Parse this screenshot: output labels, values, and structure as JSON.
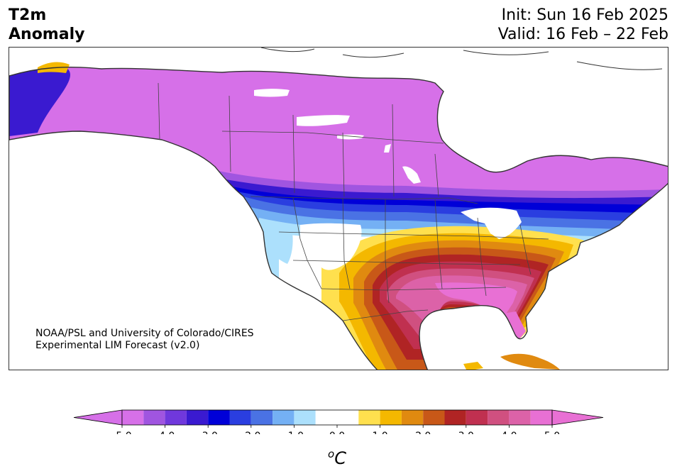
{
  "header": {
    "title_line1": "T2m",
    "title_line2": "Anomaly",
    "init": "Init: Sun 16 Feb 2025",
    "valid": "Valid: 16 Feb – 22 Feb"
  },
  "credit": {
    "line1": "NOAA/PSL and University of Colorado/CIRES",
    "line2": "Experimental LIM Forecast (v2.0)"
  },
  "colorbar": {
    "unit_base": "C",
    "unit_sup": "o",
    "tick_labels": [
      "-5.0",
      "-4.0",
      "-3.0",
      "-2.0",
      "-1.0",
      "0.0",
      "1.0",
      "2.0",
      "3.0",
      "4.0",
      "5.0"
    ],
    "ticks": [
      -5,
      -4,
      -3,
      -2,
      -1,
      0,
      1,
      2,
      3,
      4,
      5
    ],
    "range": [
      -5,
      5
    ],
    "bins": [
      {
        "from": -5.0,
        "to": -4.5,
        "color": "#d670e8"
      },
      {
        "from": -4.5,
        "to": -4.0,
        "color": "#a055e0"
      },
      {
        "from": -4.0,
        "to": -3.5,
        "color": "#7038dc"
      },
      {
        "from": -3.5,
        "to": -3.0,
        "color": "#3a1ad0"
      },
      {
        "from": -3.0,
        "to": -2.5,
        "color": "#0000d8"
      },
      {
        "from": -2.5,
        "to": -2.0,
        "color": "#2a3ee0"
      },
      {
        "from": -2.0,
        "to": -1.5,
        "color": "#4a72e4"
      },
      {
        "from": -1.5,
        "to": -1.0,
        "color": "#74b0f4"
      },
      {
        "from": -1.0,
        "to": -0.5,
        "color": "#ace0fc"
      },
      {
        "from": -0.5,
        "to": 0.5,
        "color": "#ffffff"
      },
      {
        "from": 0.5,
        "to": 1.0,
        "color": "#ffe04e"
      },
      {
        "from": 1.0,
        "to": 1.5,
        "color": "#f4b800"
      },
      {
        "from": 1.5,
        "to": 2.0,
        "color": "#e08a10"
      },
      {
        "from": 2.0,
        "to": 2.5,
        "color": "#c85818"
      },
      {
        "from": 2.5,
        "to": 3.0,
        "color": "#b02424"
      },
      {
        "from": 3.0,
        "to": 3.5,
        "color": "#c03050"
      },
      {
        "from": 3.5,
        "to": 4.0,
        "color": "#d05080"
      },
      {
        "from": 4.0,
        "to": 4.5,
        "color": "#dc62a8"
      },
      {
        "from": 4.5,
        "to": 5.0,
        "color": "#e870d4"
      }
    ],
    "under_color": "#d670e8",
    "over_color": "#e870d4"
  },
  "map": {
    "ocean_color": "#ffffff",
    "border_color": "#333333"
  }
}
